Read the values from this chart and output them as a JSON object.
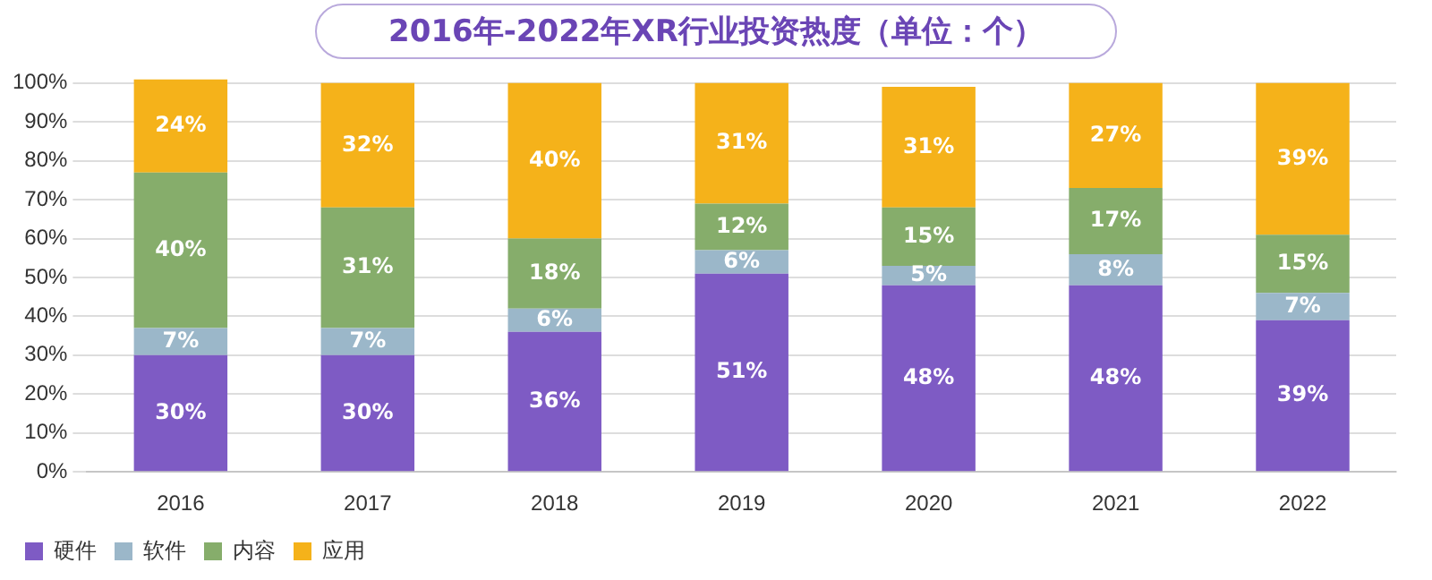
{
  "chart_data": {
    "type": "bar",
    "title": "2016年-2022年XR行业投资热度（单位：个）",
    "stacked": true,
    "categories": [
      "2016",
      "2017",
      "2018",
      "2019",
      "2020",
      "2021",
      "2022"
    ],
    "series": [
      {
        "name": "硬件",
        "color": "#7e5bc4",
        "values": [
          30,
          30,
          36,
          51,
          48,
          48,
          39
        ],
        "value_labels": [
          "30%",
          "30%",
          "36%",
          "51%",
          "48%",
          "48%",
          "39%"
        ]
      },
      {
        "name": "软件",
        "color": "#9bb7c9",
        "values": [
          7,
          7,
          6,
          6,
          5,
          8,
          7
        ],
        "value_labels": [
          "7%",
          "7%",
          "6%",
          "6%",
          "5%",
          "8%",
          "7%"
        ]
      },
      {
        "name": "内容",
        "color": "#86ad6b",
        "values": [
          40,
          31,
          18,
          12,
          15,
          17,
          15
        ],
        "value_labels": [
          "40%",
          "31%",
          "18%",
          "12%",
          "15%",
          "17%",
          "15%"
        ]
      },
      {
        "name": "应用",
        "color": "#f5b21a",
        "values": [
          24,
          32,
          40,
          31,
          31,
          27,
          39
        ],
        "value_labels": [
          "24%",
          "32%",
          "40%",
          "31%",
          "31%",
          "27%",
          "39%"
        ]
      }
    ],
    "ylim": [
      0,
      101
    ],
    "yticks": [
      {
        "value": 0,
        "label": "0%"
      },
      {
        "value": 10,
        "label": "10%"
      },
      {
        "value": 20,
        "label": "20%"
      },
      {
        "value": 30,
        "label": "30%"
      },
      {
        "value": 40,
        "label": "40%"
      },
      {
        "value": 50,
        "label": "50%"
      },
      {
        "value": 60,
        "label": "60%"
      },
      {
        "value": 70,
        "label": "70%"
      },
      {
        "value": 80,
        "label": "80%"
      },
      {
        "value": 90,
        "label": "90%"
      },
      {
        "value": 100,
        "label": "100%"
      }
    ],
    "grid": "y",
    "legend": "bottom left"
  }
}
